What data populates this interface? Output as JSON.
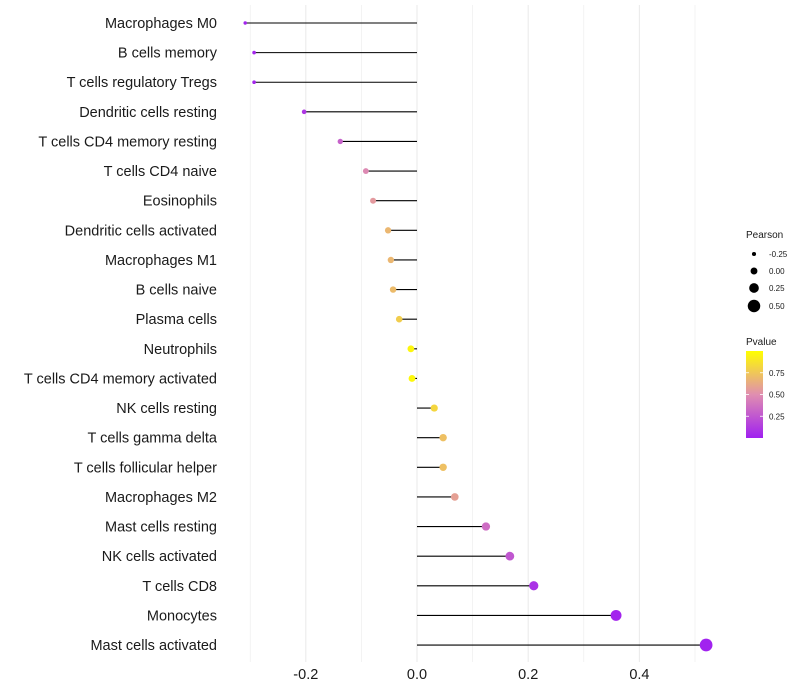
{
  "chart_data": {
    "type": "lollipop",
    "title": "",
    "xlabel": "",
    "ylabel": "",
    "xlim": [
      -0.33,
      0.54
    ],
    "xticks": [
      -0.2,
      0.0,
      0.2,
      0.4
    ],
    "xtick_labels": [
      "-0.2",
      "0.0",
      "0.2",
      "0.4"
    ],
    "minor_gridlines": [
      -0.3,
      -0.1,
      0.1,
      0.3,
      0.5
    ],
    "grid": true,
    "baseline": 0,
    "categories": [
      "Macrophages M0",
      "B cells memory",
      "T cells regulatory  Tregs",
      "Dendritic cells resting",
      "T cells CD4 memory resting",
      "T cells CD4 naive",
      "Eosinophils",
      "Dendritic cells activated",
      "Macrophages M1",
      "B cells naive",
      "Plasma cells",
      "Neutrophils",
      "T cells CD4 memory activated",
      "NK cells resting",
      "T cells gamma delta",
      "T cells follicular helper",
      "Macrophages M2",
      "Mast cells resting",
      "NK cells activated",
      "T cells CD8",
      "Monocytes",
      "Mast cells activated"
    ],
    "pearson": [
      -0.309,
      -0.293,
      -0.293,
      -0.203,
      -0.138,
      -0.092,
      -0.079,
      -0.052,
      -0.047,
      -0.043,
      -0.032,
      -0.011,
      -0.009,
      0.031,
      0.047,
      0.047,
      0.068,
      0.124,
      0.167,
      0.21,
      0.358,
      0.52
    ],
    "pvalue": [
      0.02,
      0.03,
      0.03,
      0.1,
      0.3,
      0.48,
      0.55,
      0.68,
      0.68,
      0.7,
      0.78,
      0.96,
      0.97,
      0.82,
      0.72,
      0.72,
      0.58,
      0.35,
      0.25,
      0.08,
      0.02,
      0.01
    ],
    "legend_size": {
      "title": "Pearson",
      "breaks": [
        -0.25,
        0.0,
        0.25,
        0.5
      ],
      "labels": [
        "-0.25",
        "0.00",
        "0.25",
        "0.50"
      ],
      "position": "right"
    },
    "legend_color": {
      "title": "Pvalue",
      "range": [
        0.0,
        1.0
      ],
      "breaks": [
        0.25,
        0.5,
        0.75
      ],
      "labels": [
        "0.25",
        "0.50",
        "0.75"
      ],
      "low_color": "#A020F0",
      "mid_color": "#E08EB0",
      "high_color": "#FFFF00",
      "position": "right"
    },
    "segment_color": "#000000",
    "grid_color": "#EBEBEB"
  }
}
